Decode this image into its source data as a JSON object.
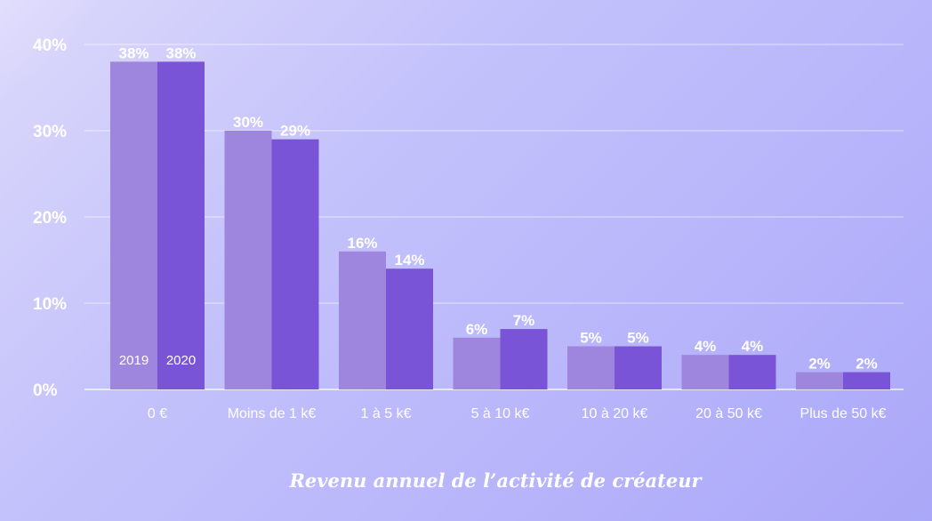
{
  "chart_data": {
    "type": "bar",
    "title": "Revenu annuel de l’activité de créateur",
    "xlabel": "",
    "ylabel": "",
    "ylim": [
      0,
      40
    ],
    "yticks": [
      "0%",
      "10%",
      "20%",
      "30%",
      "40%"
    ],
    "grid": true,
    "legend": "inside-first-bars",
    "categories": [
      "0 €",
      "Moins de 1 k€",
      "1 à 5 k€",
      "5 à 10 k€",
      "10 à 20 k€",
      "20 à 50 k€",
      "Plus de 50 k€"
    ],
    "series": [
      {
        "name": "2019",
        "values": [
          38,
          30,
          16,
          6,
          5,
          4,
          2
        ],
        "labels": [
          "38%",
          "30%",
          "16%",
          "6%",
          "5%",
          "4%",
          "2%"
        ],
        "color": "#9e86de"
      },
      {
        "name": "2020",
        "values": [
          38,
          29,
          14,
          7,
          5,
          4,
          2
        ],
        "labels": [
          "38%",
          "29%",
          "14%",
          "7%",
          "5%",
          "4%",
          "2%"
        ],
        "color": "#7a54d6"
      }
    ]
  }
}
